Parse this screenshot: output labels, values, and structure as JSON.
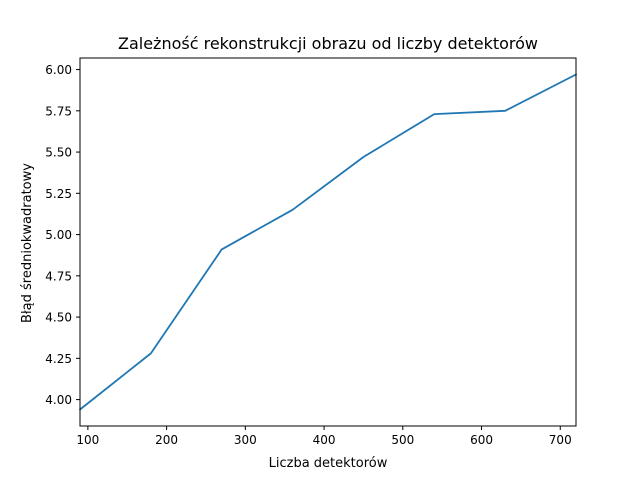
{
  "colors": {
    "series": "#1f77b4",
    "axes": "#000000",
    "background": "#ffffff"
  },
  "chart_data": {
    "type": "line",
    "title": "Zależność rekonstrukcji obrazu od liczby detektorów",
    "xlabel": "Liczba detektorów",
    "ylabel": "Błąd średniokwadratowy",
    "xlim": [
      90,
      720
    ],
    "ylim": [
      3.84,
      6.07
    ],
    "grid": false,
    "xticks": [
      100,
      200,
      300,
      400,
      500,
      600,
      700
    ],
    "xtick_labels": [
      "100",
      "200",
      "300",
      "400",
      "500",
      "600",
      "700"
    ],
    "yticks": [
      4.0,
      4.25,
      4.5,
      4.75,
      5.0,
      5.25,
      5.5,
      5.75,
      6.0
    ],
    "ytick_labels": [
      "4.00",
      "4.25",
      "4.50",
      "4.75",
      "5.00",
      "5.25",
      "5.50",
      "5.75",
      "6.00"
    ],
    "series": [
      {
        "x": [
          90,
          180,
          270,
          360,
          450,
          540,
          630,
          720
        ],
        "y": [
          3.94,
          4.28,
          4.91,
          5.15,
          5.47,
          5.73,
          5.75,
          5.97
        ]
      }
    ]
  }
}
